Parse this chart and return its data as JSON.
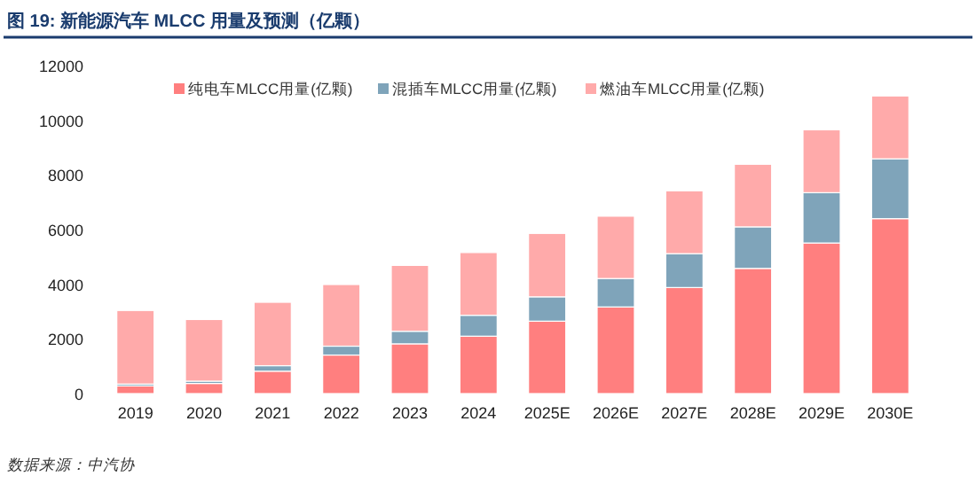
{
  "chart_data": {
    "type": "bar",
    "title": "图 19: 新能源汽车 MLCC 用量及预测（亿颗）",
    "categories": [
      "2019",
      "2020",
      "2021",
      "2022",
      "2023",
      "2024",
      "2025E",
      "2026E",
      "2027E",
      "2028E",
      "2029E",
      "2030E"
    ],
    "series": [
      {
        "name": "纯电车MLCC用量(亿颗)",
        "color": "#ff7f7f",
        "values": [
          280,
          370,
          820,
          1410,
          1820,
          2100,
          2650,
          3170,
          3880,
          4580,
          5510,
          6400
        ]
      },
      {
        "name": "混插车MLCC用量(亿颗)",
        "color": "#7fa4ba",
        "values": [
          70,
          85,
          200,
          325,
          460,
          765,
          890,
          1040,
          1240,
          1520,
          1840,
          2190
        ]
      },
      {
        "name": "燃油车MLCC用量(亿颗)",
        "color": "#ffaaaa",
        "values": [
          2690,
          2255,
          2320,
          2255,
          2410,
          2295,
          2320,
          2280,
          2300,
          2290,
          2300,
          2300
        ]
      }
    ],
    "stacked": true,
    "ylim": [
      0,
      12000
    ],
    "yticks": [
      0,
      2000,
      4000,
      6000,
      8000,
      10000,
      12000
    ],
    "grid": false,
    "legend": "top",
    "annotations": [
      "数据来源：中汽协"
    ]
  }
}
